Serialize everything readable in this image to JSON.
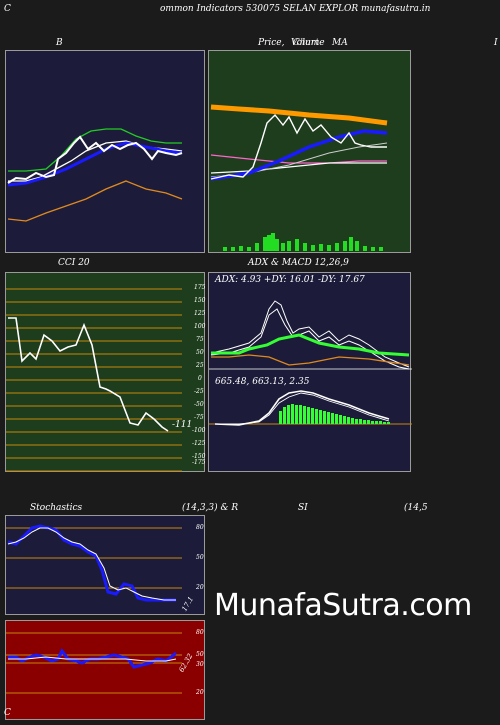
{
  "header": {
    "left_letter": "C",
    "title": "ommon  Indicators 530075 SELAN  EXPLOR munafasutra.in",
    "footer_letter": "C"
  },
  "panels": {
    "bb_title": "B",
    "price_title": "Price,",
    "price_overlap_a": "Volume",
    "price_overlap_b": "Chart",
    "ma_label": "MA",
    "right_edge": "I",
    "cci_title": "CCI 20",
    "cci_last": "-111",
    "cci_ticks": [
      "175",
      "150",
      "125",
      "100",
      "75",
      "50",
      "25",
      "0",
      "-25",
      "-50",
      "-75",
      "-100",
      "-125",
      "-150",
      "-175"
    ],
    "adx_title": "ADX  & MACD 12,26,9",
    "adx_values": "ADX: 4.93 +DY: 16.01 -DY: 17.67",
    "macd_values": "665.48,  663.13,  2.35",
    "stoch_title": "Stochastics",
    "stoch_params": "(14,3,3) & R",
    "stoch_ticks": [
      "80",
      "50",
      "20"
    ],
    "stoch_last": "17.1",
    "rsi_title": "SI",
    "rsi_params": "(14,5",
    "rsi_ticks": [
      "80",
      "50",
      "30",
      "20"
    ],
    "rsi_last": "62.32"
  },
  "brand": "MunafaSutra.com",
  "colors": {
    "navy_panel": "#1c1c3a",
    "green_panel": "#1d3d1c",
    "red_panel": "#8a0000",
    "cci_grid": "#c8860a",
    "accent_blue": "#1a1aff",
    "accent_green": "#33ff33",
    "accent_orange": "#e08a1e"
  }
}
